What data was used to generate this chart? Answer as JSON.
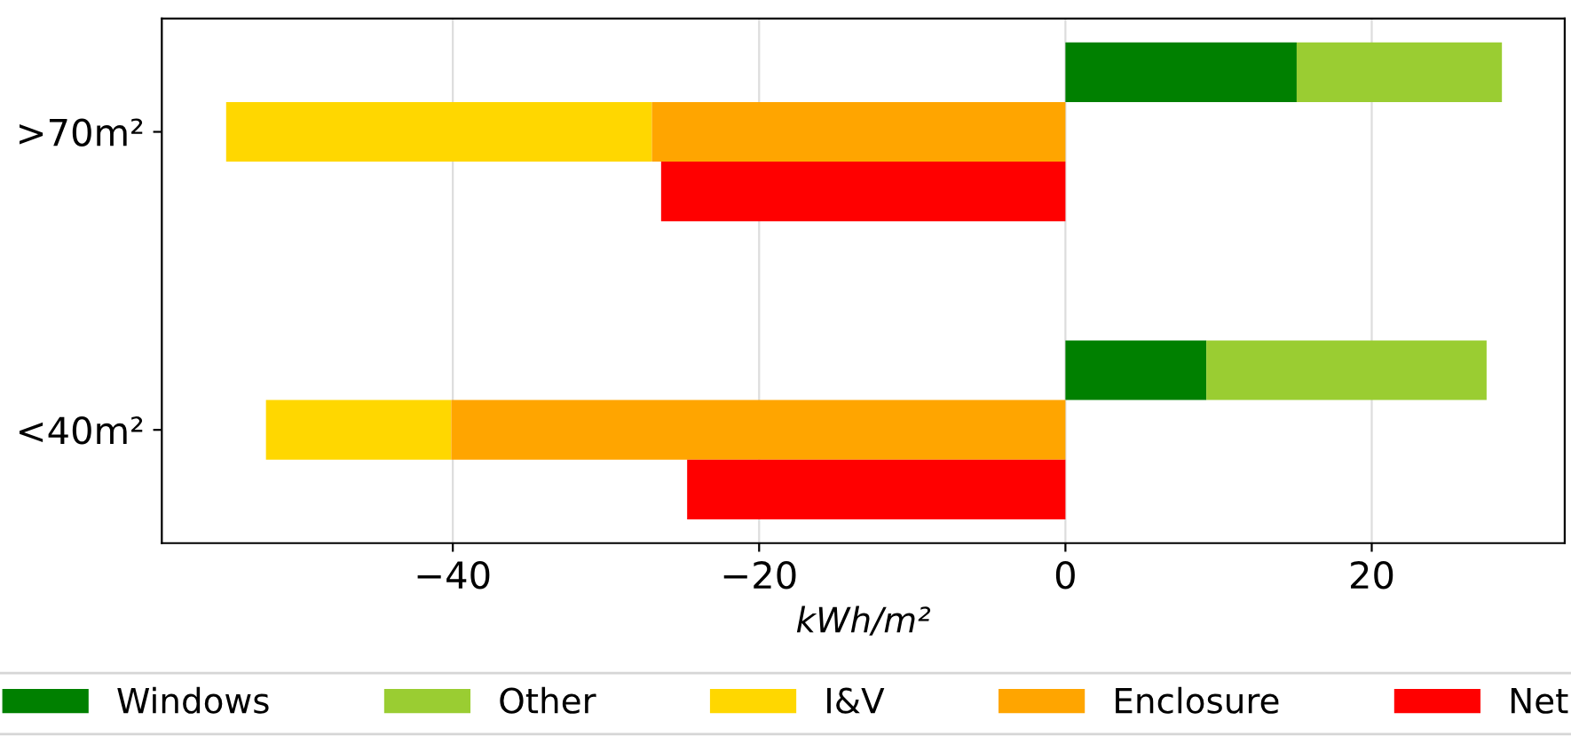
{
  "chart_data": {
    "type": "bar",
    "orientation": "horizontal",
    "xlabel": "kWh/m²",
    "categories": [
      null,
      ">70m²",
      null,
      null,
      null,
      null,
      "<40m²",
      null
    ],
    "series": [
      {
        "name": "Windows",
        "color": "#008000",
        "values": [
          15.1,
          null,
          null,
          null,
          null,
          9.2,
          null,
          null
        ]
      },
      {
        "name": "Other",
        "color": "#9acd32",
        "values": [
          13.4,
          null,
          null,
          null,
          null,
          18.3,
          null,
          null
        ],
        "base": [
          15.1,
          null,
          null,
          null,
          null,
          9.2,
          null,
          null
        ]
      },
      {
        "name": "I&V",
        "color": "#ffd700",
        "values": [
          null,
          -27.8,
          null,
          null,
          null,
          null,
          -12.1,
          null
        ],
        "base": [
          null,
          -27.0,
          null,
          null,
          null,
          null,
          -40.1,
          null
        ]
      },
      {
        "name": "Enclosure",
        "color": "#ffa500",
        "values": [
          null,
          -27.0,
          null,
          null,
          null,
          null,
          -40.1,
          null
        ]
      },
      {
        "name": "Net",
        "color": "#ff0000",
        "values": [
          null,
          null,
          -26.4,
          null,
          null,
          null,
          null,
          -24.7
        ]
      }
    ],
    "xlim": [
      -59.0,
      32.6
    ],
    "xticks": [
      -40,
      -20,
      0,
      20
    ],
    "grid": "x",
    "legend": "bottom"
  }
}
